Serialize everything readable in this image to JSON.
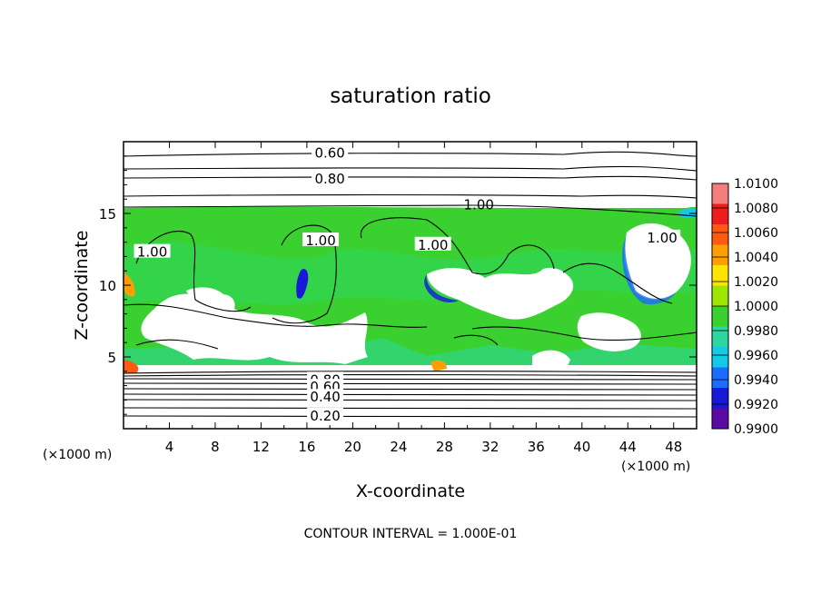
{
  "chart_data": {
    "type": "heatmap",
    "title": "saturation ratio",
    "xlabel": "X-coordinate",
    "ylabel": "Z-coordinate",
    "x_unit_label": "(×1000 m)",
    "z_unit_label": "(×1000 m)",
    "xlim": [
      0,
      50
    ],
    "ylim": [
      0,
      20
    ],
    "x_ticks": [
      4,
      8,
      12,
      16,
      20,
      24,
      28,
      32,
      36,
      40,
      44,
      48
    ],
    "y_ticks": [
      5,
      10,
      15
    ],
    "footer": "CONTOUR INTERVAL = 1.000E-01",
    "colorbar": {
      "min": 0.99,
      "max": 1.01,
      "labels": [
        "1.0100",
        "1.0080",
        "1.0060",
        "1.0040",
        "1.0020",
        "1.0000",
        "0.9980",
        "0.9960",
        "0.9940",
        "0.9920",
        "0.9900"
      ],
      "colors": [
        "#f47c7c",
        "#ee1c1c",
        "#ff5a10",
        "#ff9e00",
        "#ffe400",
        "#9ee600",
        "#3ad130",
        "#2ed7a0",
        "#14c8e8",
        "#1c6cff",
        "#1818d8",
        "#5a0aa0"
      ]
    },
    "contour_labels": [
      {
        "text": "0.60",
        "x": 18.0,
        "z": 19.2
      },
      {
        "text": "0.80",
        "x": 18.0,
        "z": 17.4
      },
      {
        "text": "1.00",
        "x": 31.0,
        "z": 15.6
      },
      {
        "text": "1.00",
        "x": 2.5,
        "z": 12.3
      },
      {
        "text": "1.00",
        "x": 17.2,
        "z": 13.1
      },
      {
        "text": "1.00",
        "x": 27.0,
        "z": 12.8
      },
      {
        "text": "1.00",
        "x": 47.0,
        "z": 13.3
      },
      {
        "text": "0.80",
        "x": 17.6,
        "z": 3.4
      },
      {
        "text": "0.60",
        "x": 17.6,
        "z": 2.9
      },
      {
        "text": "0.40",
        "x": 17.6,
        "z": 2.2
      },
      {
        "text": "0.20",
        "x": 17.6,
        "z": 0.9
      }
    ]
  }
}
